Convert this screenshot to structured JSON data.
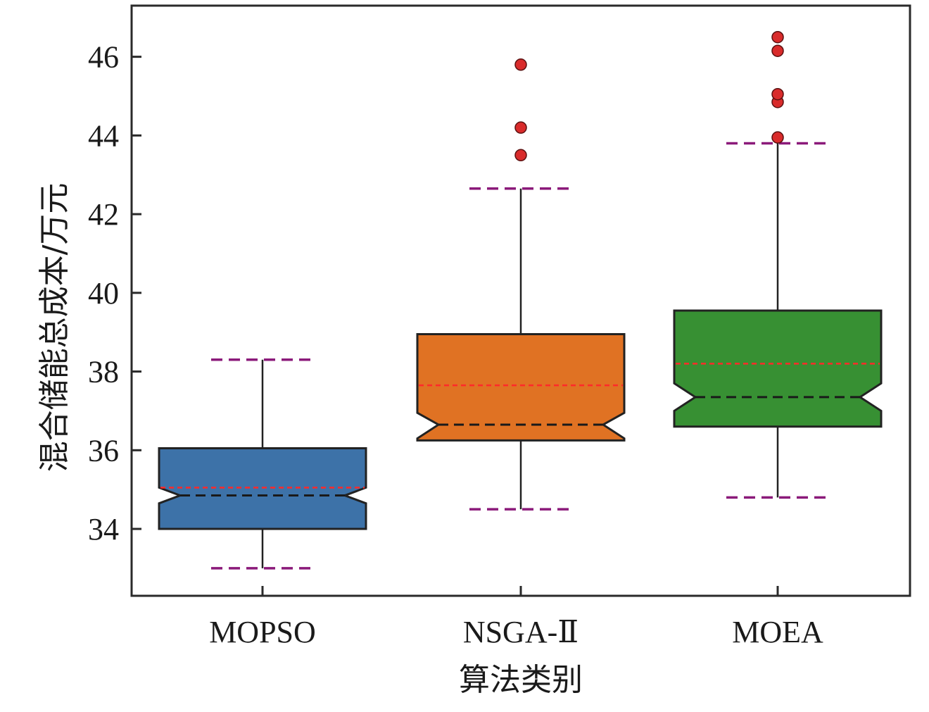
{
  "chart_data": {
    "type": "box",
    "notched": true,
    "xlabel": "算法类别",
    "ylabel": "混合储能总成本/万元",
    "ylim": [
      32.3,
      47.3
    ],
    "yticks": [
      34,
      36,
      38,
      40,
      42,
      44,
      46
    ],
    "ytick_labels": [
      "34",
      "36",
      "38",
      "40",
      "42",
      "44",
      "46"
    ],
    "categories": [
      "MOPSO",
      "NSGA-Ⅱ",
      "MOEA"
    ],
    "boxes": [
      {
        "name": "MOPSO",
        "color": "#3d72a8",
        "whisker_low": 33.0,
        "q1": 34.0,
        "notch_low": 34.65,
        "median": 34.85,
        "notch_high": 35.05,
        "mean": 35.05,
        "q3": 36.05,
        "whisker_high": 38.3,
        "outliers": []
      },
      {
        "name": "NSGA-Ⅱ",
        "color": "#e07223",
        "whisker_low": 34.5,
        "q1": 36.25,
        "notch_low": 36.3,
        "median": 36.65,
        "notch_high": 36.95,
        "mean": 37.65,
        "q3": 38.95,
        "whisker_high": 42.65,
        "outliers": [
          43.5,
          44.2,
          45.8
        ]
      },
      {
        "name": "MOEA",
        "color": "#379033",
        "whisker_low": 34.8,
        "q1": 36.6,
        "notch_low": 37.0,
        "median": 37.35,
        "notch_high": 37.7,
        "mean": 38.2,
        "q3": 39.55,
        "whisker_high": 43.8,
        "outliers": [
          43.95,
          44.85,
          45.05,
          46.15,
          46.5
        ]
      }
    ],
    "colors": {
      "median_line": "#1a1a1a",
      "mean_line": "#ff2a2a",
      "whisker_cap": "#8b1a7a",
      "outlier_fill": "#d92b2b",
      "frame": "#2a2a2a"
    },
    "grid": false
  }
}
